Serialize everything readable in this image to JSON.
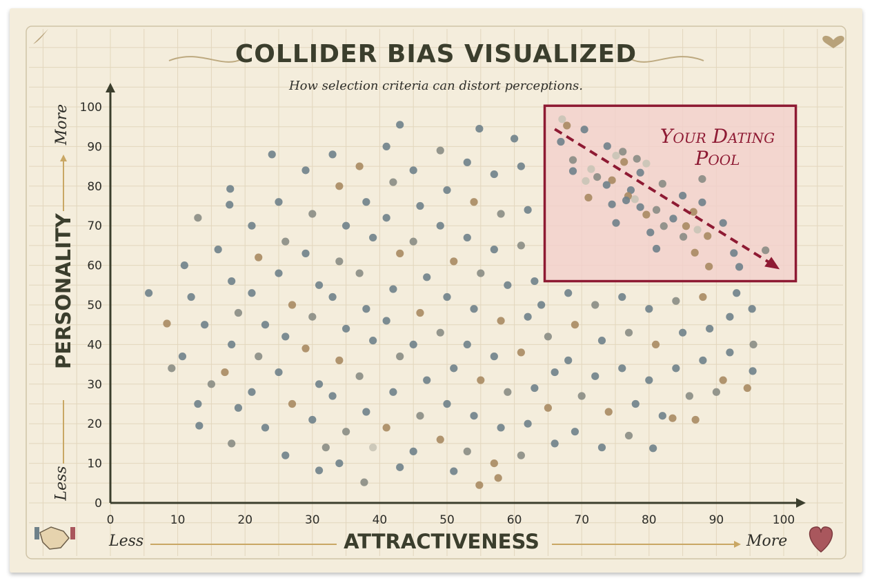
{
  "title": "COLLIDER BIAS VISUALIZED",
  "subtitle": "How selection criteria can distort perceptions.",
  "colors": {
    "paper": "#f4eddc",
    "grid": "#e2d6bd",
    "axis": "#3b3e2d",
    "accent": "#8e1a33",
    "pool_fill": "#f2cfcc",
    "arrow_line": "#c9a764",
    "point_blue": "#6f8189",
    "point_gray": "#8a8c84",
    "point_tan": "#a88a62",
    "point_light": "#c9c4b6"
  },
  "icons": {
    "top_left": "feather-icon",
    "top_right": "heart-icon",
    "bottom_left": "handshake-icon",
    "bottom_right": "heart-icon"
  },
  "chart_data": {
    "type": "scatter",
    "title": "COLLIDER BIAS VISUALIZED",
    "subtitle": "How selection criteria can distort perceptions.",
    "xlabel": "ATTRACTIVENESS",
    "ylabel": "PERSONALITY",
    "x_less": "Less",
    "x_more": "More",
    "y_less": "Less",
    "y_more": "More",
    "xlim": [
      0,
      100
    ],
    "ylim": [
      0,
      100
    ],
    "xticks": [
      0,
      10,
      20,
      30,
      40,
      50,
      60,
      70,
      80,
      90,
      100
    ],
    "yticks": [
      0,
      10,
      20,
      30,
      40,
      50,
      60,
      70,
      80,
      90,
      100
    ],
    "grid": true,
    "annotation": {
      "label_line1": "Your Dating",
      "label_line2": "Pool",
      "region": {
        "x": [
          64.5,
          101.8
        ],
        "y": [
          56,
          100.3
        ]
      },
      "trend_arrow": {
        "from": [
          66,
          94.4
        ],
        "to": [
          99.4,
          59
        ]
      }
    },
    "point_colors": {
      "b": "point_blue",
      "g": "point_gray",
      "t": "point_tan",
      "l": "point_light"
    },
    "points_note_free": true,
    "pool_points": [
      [
        67.1,
        96.9,
        "l"
      ],
      [
        67.8,
        95.3,
        "t"
      ],
      [
        70.4,
        94.3,
        "b"
      ],
      [
        66.9,
        91.2,
        "b"
      ],
      [
        73.8,
        90.1,
        "b"
      ],
      [
        76.1,
        88.7,
        "g"
      ],
      [
        75.1,
        87.7,
        "l"
      ],
      [
        68.7,
        86.6,
        "g"
      ],
      [
        76.3,
        86.1,
        "t"
      ],
      [
        78.2,
        86.9,
        "g"
      ],
      [
        79.6,
        85.7,
        "l"
      ],
      [
        68.7,
        83.8,
        "b"
      ],
      [
        71.4,
        84.3,
        "l"
      ],
      [
        78.7,
        83.4,
        "b"
      ],
      [
        72.3,
        82.3,
        "g"
      ],
      [
        70.6,
        81.3,
        "l"
      ],
      [
        74.5,
        81.5,
        "t"
      ],
      [
        73.7,
        80.3,
        "b"
      ],
      [
        82.0,
        80.6,
        "g"
      ],
      [
        87.9,
        81.8,
        "g"
      ],
      [
        77.3,
        79.0,
        "b"
      ],
      [
        76.9,
        77.5,
        "t"
      ],
      [
        71.0,
        77.1,
        "t"
      ],
      [
        77.9,
        76.7,
        "l"
      ],
      [
        76.6,
        76.4,
        "b"
      ],
      [
        85.0,
        77.6,
        "b"
      ],
      [
        87.9,
        75.9,
        "b"
      ],
      [
        74.5,
        75.4,
        "b"
      ],
      [
        78.7,
        74.7,
        "b"
      ],
      [
        81.1,
        74.0,
        "g"
      ],
      [
        79.6,
        72.8,
        "t"
      ],
      [
        86.6,
        73.5,
        "t"
      ],
      [
        83.6,
        71.8,
        "b"
      ],
      [
        91.0,
        70.7,
        "b"
      ],
      [
        75.1,
        70.7,
        "b"
      ],
      [
        82.2,
        69.9,
        "g"
      ],
      [
        85.5,
        69.9,
        "t"
      ],
      [
        87.2,
        69.0,
        "l"
      ],
      [
        80.2,
        68.3,
        "b"
      ],
      [
        85.1,
        67.2,
        "g"
      ],
      [
        88.7,
        67.4,
        "t"
      ],
      [
        81.1,
        64.2,
        "b"
      ],
      [
        86.8,
        63.2,
        "t"
      ],
      [
        92.6,
        63.1,
        "b"
      ],
      [
        97.3,
        63.8,
        "g"
      ],
      [
        88.9,
        59.7,
        "t"
      ],
      [
        93.4,
        59.6,
        "b"
      ]
    ],
    "points": [
      [
        5.7,
        53,
        "b"
      ],
      [
        8.4,
        45.3,
        "t"
      ],
      [
        9.1,
        34,
        "g"
      ],
      [
        10.7,
        37,
        "b"
      ],
      [
        13.2,
        19.5,
        "b"
      ],
      [
        17.7,
        75.3,
        "b"
      ],
      [
        17.8,
        79.3,
        "b"
      ],
      [
        43,
        95.5,
        "b"
      ],
      [
        54.8,
        94.5,
        "b"
      ],
      [
        60,
        92,
        "b"
      ],
      [
        37.7,
        5.2,
        "g"
      ],
      [
        54.8,
        4.5,
        "t"
      ],
      [
        57.6,
        6.3,
        "t"
      ],
      [
        31,
        8.2,
        "b"
      ],
      [
        95.3,
        49,
        "b"
      ],
      [
        95.5,
        40,
        "g"
      ],
      [
        95.4,
        33.3,
        "b"
      ],
      [
        94.6,
        29,
        "t"
      ],
      [
        80.6,
        13.8,
        "b"
      ],
      [
        83.5,
        21.4,
        "t"
      ],
      [
        86.9,
        21,
        "t"
      ],
      [
        11,
        60,
        "b"
      ],
      [
        13,
        72,
        "g"
      ],
      [
        12,
        52,
        "b"
      ],
      [
        14,
        45,
        "b"
      ],
      [
        15,
        30,
        "g"
      ],
      [
        13,
        25,
        "b"
      ],
      [
        16,
        64,
        "b"
      ],
      [
        18,
        56,
        "b"
      ],
      [
        19,
        48,
        "g"
      ],
      [
        18,
        40,
        "b"
      ],
      [
        17,
        33,
        "t"
      ],
      [
        19,
        24,
        "b"
      ],
      [
        18,
        15,
        "g"
      ],
      [
        21,
        70,
        "b"
      ],
      [
        22,
        62,
        "t"
      ],
      [
        21,
        53,
        "b"
      ],
      [
        23,
        45,
        "b"
      ],
      [
        22,
        37,
        "g"
      ],
      [
        21,
        28,
        "b"
      ],
      [
        23,
        19,
        "b"
      ],
      [
        24,
        88,
        "b"
      ],
      [
        25,
        76,
        "b"
      ],
      [
        26,
        66,
        "g"
      ],
      [
        25,
        58,
        "b"
      ],
      [
        27,
        50,
        "t"
      ],
      [
        26,
        42,
        "b"
      ],
      [
        25,
        33,
        "b"
      ],
      [
        27,
        25,
        "t"
      ],
      [
        26,
        12,
        "b"
      ],
      [
        29,
        84,
        "b"
      ],
      [
        30,
        73,
        "g"
      ],
      [
        29,
        63,
        "b"
      ],
      [
        31,
        55,
        "b"
      ],
      [
        30,
        47,
        "g"
      ],
      [
        29,
        39,
        "t"
      ],
      [
        31,
        30,
        "b"
      ],
      [
        30,
        21,
        "b"
      ],
      [
        32,
        14,
        "g"
      ],
      [
        33,
        88,
        "b"
      ],
      [
        34,
        80,
        "t"
      ],
      [
        35,
        70,
        "b"
      ],
      [
        34,
        61,
        "g"
      ],
      [
        33,
        52,
        "b"
      ],
      [
        35,
        44,
        "b"
      ],
      [
        34,
        36,
        "t"
      ],
      [
        33,
        27,
        "b"
      ],
      [
        35,
        18,
        "g"
      ],
      [
        34,
        10,
        "b"
      ],
      [
        37,
        85,
        "t"
      ],
      [
        38,
        76,
        "b"
      ],
      [
        39,
        67,
        "b"
      ],
      [
        37,
        58,
        "g"
      ],
      [
        38,
        49,
        "b"
      ],
      [
        39,
        41,
        "b"
      ],
      [
        37,
        32,
        "g"
      ],
      [
        38,
        23,
        "b"
      ],
      [
        39,
        14,
        "l"
      ],
      [
        41,
        90,
        "b"
      ],
      [
        42,
        81,
        "g"
      ],
      [
        41,
        72,
        "b"
      ],
      [
        43,
        63,
        "t"
      ],
      [
        42,
        54,
        "b"
      ],
      [
        41,
        46,
        "b"
      ],
      [
        43,
        37,
        "g"
      ],
      [
        42,
        28,
        "b"
      ],
      [
        41,
        19,
        "t"
      ],
      [
        43,
        9,
        "b"
      ],
      [
        45,
        84,
        "b"
      ],
      [
        46,
        75,
        "b"
      ],
      [
        45,
        66,
        "g"
      ],
      [
        47,
        57,
        "b"
      ],
      [
        46,
        48,
        "t"
      ],
      [
        45,
        40,
        "b"
      ],
      [
        47,
        31,
        "b"
      ],
      [
        46,
        22,
        "g"
      ],
      [
        45,
        13,
        "b"
      ],
      [
        49,
        89,
        "g"
      ],
      [
        50,
        79,
        "b"
      ],
      [
        49,
        70,
        "b"
      ],
      [
        51,
        61,
        "t"
      ],
      [
        50,
        52,
        "b"
      ],
      [
        49,
        43,
        "g"
      ],
      [
        51,
        34,
        "b"
      ],
      [
        50,
        25,
        "b"
      ],
      [
        49,
        16,
        "t"
      ],
      [
        51,
        8,
        "b"
      ],
      [
        53,
        86,
        "b"
      ],
      [
        54,
        76,
        "t"
      ],
      [
        53,
        67,
        "b"
      ],
      [
        55,
        58,
        "g"
      ],
      [
        54,
        49,
        "b"
      ],
      [
        53,
        40,
        "b"
      ],
      [
        55,
        31,
        "t"
      ],
      [
        54,
        22,
        "b"
      ],
      [
        53,
        13,
        "g"
      ],
      [
        57,
        83,
        "b"
      ],
      [
        58,
        73,
        "g"
      ],
      [
        57,
        64,
        "b"
      ],
      [
        59,
        55,
        "b"
      ],
      [
        58,
        46,
        "t"
      ],
      [
        57,
        37,
        "b"
      ],
      [
        59,
        28,
        "g"
      ],
      [
        58,
        19,
        "b"
      ],
      [
        57,
        10,
        "t"
      ],
      [
        61,
        85,
        "b"
      ],
      [
        62,
        74,
        "b"
      ],
      [
        61,
        65,
        "g"
      ],
      [
        63,
        56,
        "b"
      ],
      [
        62,
        47,
        "b"
      ],
      [
        61,
        38,
        "t"
      ],
      [
        63,
        29,
        "b"
      ],
      [
        62,
        20,
        "b"
      ],
      [
        61,
        12,
        "g"
      ],
      [
        64,
        50,
        "b"
      ],
      [
        65,
        42,
        "g"
      ],
      [
        66,
        33,
        "b"
      ],
      [
        65,
        24,
        "t"
      ],
      [
        66,
        15,
        "b"
      ],
      [
        68,
        53,
        "b"
      ],
      [
        69,
        45,
        "t"
      ],
      [
        68,
        36,
        "b"
      ],
      [
        70,
        27,
        "g"
      ],
      [
        69,
        18,
        "b"
      ],
      [
        72,
        50,
        "g"
      ],
      [
        73,
        41,
        "b"
      ],
      [
        72,
        32,
        "b"
      ],
      [
        74,
        23,
        "t"
      ],
      [
        73,
        14,
        "b"
      ],
      [
        76,
        52,
        "b"
      ],
      [
        77,
        43,
        "g"
      ],
      [
        76,
        34,
        "b"
      ],
      [
        78,
        25,
        "b"
      ],
      [
        77,
        17,
        "g"
      ],
      [
        80,
        49,
        "b"
      ],
      [
        81,
        40,
        "t"
      ],
      [
        80,
        31,
        "b"
      ],
      [
        82,
        22,
        "b"
      ],
      [
        84,
        51,
        "g"
      ],
      [
        85,
        43,
        "b"
      ],
      [
        84,
        34,
        "b"
      ],
      [
        86,
        27,
        "g"
      ],
      [
        88,
        52,
        "t"
      ],
      [
        89,
        44,
        "b"
      ],
      [
        88,
        36,
        "b"
      ],
      [
        90,
        28,
        "g"
      ],
      [
        92,
        47,
        "b"
      ],
      [
        92,
        38,
        "b"
      ],
      [
        91,
        31,
        "t"
      ],
      [
        93,
        53,
        "b"
      ]
    ]
  }
}
